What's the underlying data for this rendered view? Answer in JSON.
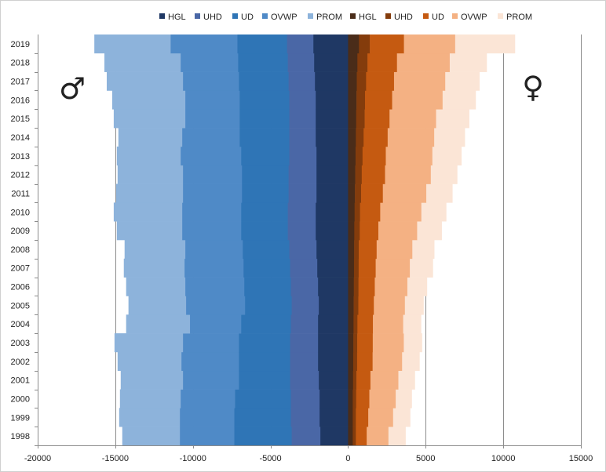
{
  "chart_data": {
    "type": "bar",
    "orientation": "horizontal",
    "stacked": true,
    "categories": [
      "1998",
      "1999",
      "2000",
      "2001",
      "2002",
      "2003",
      "2004",
      "2005",
      "2006",
      "2007",
      "2008",
      "2009",
      "2010",
      "2011",
      "2012",
      "2013",
      "2014",
      "2015",
      "2016",
      "2017",
      "2018",
      "2019"
    ],
    "xlim": [
      -20000,
      15000
    ],
    "xticks": [
      "-20000",
      "-15000",
      "-10000",
      "-5000",
      "0",
      "5000",
      "10000",
      "15000"
    ],
    "grid": true,
    "legend_position": "top",
    "gender_symbols": {
      "male": "♂",
      "female": "♀"
    },
    "male_series": [
      {
        "name": "HGL",
        "color": "#1f3864",
        "values": [
          1800,
          1850,
          1850,
          1900,
          1950,
          1950,
          1950,
          1900,
          1950,
          2000,
          2050,
          2100,
          2100,
          2050,
          2050,
          2050,
          2100,
          2100,
          2100,
          2150,
          2200,
          2250
        ]
      },
      {
        "name": "UHD",
        "color": "#4a67a6",
        "values": [
          1850,
          1850,
          1850,
          1850,
          1800,
          1800,
          1750,
          1750,
          1750,
          1750,
          1750,
          1800,
          1800,
          1800,
          1800,
          1750,
          1700,
          1700,
          1700,
          1700,
          1700,
          1700
        ]
      },
      {
        "name": "UD",
        "color": "#2f75b6",
        "values": [
          3700,
          3650,
          3600,
          3300,
          3300,
          3300,
          3200,
          3000,
          3000,
          3000,
          3000,
          3000,
          3000,
          3000,
          3000,
          3100,
          3200,
          3200,
          3200,
          3200,
          3200,
          3200
        ]
      },
      {
        "name": "OVWP",
        "color": "#4f8ac7",
        "values": [
          3500,
          3500,
          3500,
          3600,
          3700,
          3600,
          3300,
          3800,
          3800,
          3800,
          3700,
          3800,
          3800,
          3800,
          3800,
          3900,
          3700,
          3500,
          3500,
          3600,
          3700,
          4300
        ]
      },
      {
        "name": "PROM",
        "color": "#8db3db",
        "values": [
          3700,
          3900,
          3900,
          4000,
          4100,
          4400,
          4100,
          3700,
          3800,
          3900,
          3900,
          4200,
          4400,
          4300,
          4200,
          4100,
          4100,
          4600,
          4700,
          4900,
          4900,
          4900
        ]
      }
    ],
    "female_series": [
      {
        "name": "HGL",
        "color": "#4a2c19",
        "values": [
          300,
          300,
          300,
          320,
          330,
          340,
          350,
          360,
          370,
          380,
          390,
          400,
          420,
          440,
          460,
          480,
          500,
          520,
          540,
          560,
          600,
          700
        ]
      },
      {
        "name": "UHD",
        "color": "#843c0c",
        "values": [
          200,
          200,
          220,
          220,
          250,
          250,
          250,
          300,
          300,
          300,
          300,
          350,
          350,
          400,
          420,
          450,
          500,
          550,
          550,
          600,
          650,
          700
        ]
      },
      {
        "name": "UD",
        "color": "#c55a11",
        "values": [
          700,
          800,
          850,
          900,
          1000,
          1000,
          1000,
          1000,
          1050,
          1100,
          1150,
          1200,
          1300,
          1400,
          1500,
          1500,
          1550,
          1600,
          1750,
          1800,
          1900,
          2200
        ]
      },
      {
        "name": "OVWP",
        "color": "#f4b183",
        "values": [
          1400,
          1600,
          1700,
          1800,
          1900,
          2000,
          1950,
          2000,
          2100,
          2200,
          2300,
          2500,
          2650,
          2800,
          2950,
          3000,
          3000,
          3000,
          3250,
          3300,
          3400,
          3300
        ]
      },
      {
        "name": "PROM",
        "color": "#fbe5d6",
        "values": [
          1100,
          1100,
          1030,
          1060,
          1120,
          1170,
          1150,
          1200,
          1260,
          1480,
          1410,
          1580,
          1600,
          1680,
          1700,
          1870,
          1970,
          2130,
          2130,
          2200,
          2380,
          3850
        ]
      }
    ]
  }
}
